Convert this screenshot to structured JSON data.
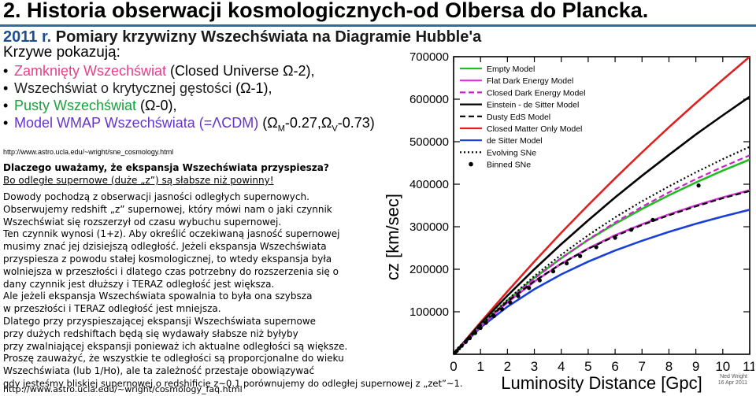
{
  "title": "2. Historia obserwacji kosmologicznych-od Olbersa do Plancka.",
  "subtitle_year": "2011 r.",
  "subtitle_rest": " Pomiary krzywizny Wszechświata na Diagramie Hubble'a",
  "intro": "Krzywe pokazują:",
  "bullets": [
    {
      "text": "Zamknięty Wszechświat",
      "suffix": " (Closed Universe Ω-2),",
      "color": "#e83e8c"
    },
    {
      "text": "Wszechświat o krytycznej gęstości",
      "suffix": " (Ω-1),",
      "color": "#222222"
    },
    {
      "text": "Pusty Wszechświat",
      "suffix": " (Ω-0),",
      "color": "#1aa23a"
    },
    {
      "text": "Model WMAP Wszechświata (=ΛCDM)",
      "suffix_html": true,
      "color": "#6633cc"
    }
  ],
  "wmap_params": {
    "open": " (Ω",
    "m_sub": "M",
    "m_val": "-0.27,Ω",
    "v_sub": "V",
    "v_val": "-0.73)"
  },
  "url1": "http://www.astro.ucla.edu/~wright/sne_cosmology.html",
  "question": "Dlaczego uważamy, że ekspansja Wszechświata przyspiesza?",
  "answer": "Bo odległe supernowe (duże „z”) są słabsze niż powinny!",
  "paragraph_lines": [
    "Dowody pochodzą z obserwacji jasności odległych supernowych.",
    "Obserwujemy redshift „z” supernowej, który mówi nam o jaki czynnik",
    "Wszechświat się rozszerzył od czasu wybuchu supernowej.",
    "Ten czynnik wynosi (1+z). Aby określić oczekiwaną jasność supernowej",
    "musimy znać jej dzisiejszą odległość. Jeżeli ekspansja Wszechświata",
    "przyspiesza z powodu stałej kosmologicznej, to wtedy ekspansja była",
    "wolniejsza w przeszłości i dlatego czas potrzebny do rozszerzenia się o",
    "dany czynnik jest dłuższy i TERAZ odległość jest większa.",
    "Ale jeżeli ekspansja Wszechświata spowalnia to była ona szybsza",
    "w przeszłości i TERAZ odległość jest mniejsza.",
    "Dlatego przy przyspieszającej ekspansji Wszechświata supernowe",
    "przy dużych redshiftach będą się wydawały słabsze niż byłyby",
    "przy zwalniającej ekspansji ponieważ ich aktualne odległości są większe.",
    "Proszę zauważyć, że wszystkie te odległości są proporcjonalne do wieku",
    "Wszechświata (lub 1/Ho), ale ta zależność przestaje obowiązywać",
    "gdy jesteśmy bliskiej supernowej o redshificie z~0.1 porównujemy do odległej supernowej z „zet”~1.",
    "http://www.astro.ucla.edu/~wright/cosmology_faq.html"
  ],
  "chart_data": {
    "type": "line",
    "xlabel": "Luminosity Distance [Gpc]",
    "ylabel": "cz [km/sec]",
    "xlim": [
      0,
      11
    ],
    "ylim": [
      0,
      700000
    ],
    "x_ticks": [
      "0",
      "1",
      "2",
      "3",
      "4",
      "5",
      "6",
      "7",
      "8",
      "9",
      "10",
      "11"
    ],
    "y_ticks": [
      "100000",
      "200000",
      "300000",
      "400000",
      "500000",
      "600000",
      "700000"
    ],
    "credit": [
      "Ned Wright",
      "16 Apr 2011"
    ],
    "series": [
      {
        "name": "Empty Model",
        "color": "#22bb22",
        "dash": "solid",
        "x": [
          0,
          1,
          2,
          3,
          4,
          5,
          6,
          7,
          8,
          9,
          10,
          11
        ],
        "y": [
          0,
          67000,
          127000,
          180000,
          226000,
          269000,
          307000,
          342000,
          374000,
          404000,
          432000,
          458000
        ]
      },
      {
        "name": "Flat Dark Energy Model",
        "color": "#dd33dd",
        "dash": "solid",
        "x": [
          0,
          1,
          2,
          3,
          4,
          5,
          6,
          7,
          8,
          9,
          10,
          11
        ],
        "y": [
          0,
          66000,
          122000,
          171000,
          213000,
          249000,
          280000,
          306000,
          329000,
          350000,
          369000,
          386000
        ]
      },
      {
        "name": "Closed Dark Energy Model",
        "color": "#cc22cc",
        "dash": "dashed",
        "x": [
          0,
          1,
          2,
          3,
          4,
          5,
          6,
          7,
          8,
          9,
          10,
          11
        ],
        "y": [
          0,
          66000,
          125000,
          178000,
          226000,
          270000,
          310000,
          347000,
          381000,
          412000,
          441000,
          468000
        ]
      },
      {
        "name": "Einstein - de Sitter Model",
        "color": "#000000",
        "dash": "solid",
        "x": [
          0,
          1,
          2,
          3,
          4,
          5,
          6,
          7,
          8,
          9,
          10,
          11
        ],
        "y": [
          0,
          72000,
          138000,
          200000,
          259000,
          315000,
          369000,
          420000,
          469000,
          517000,
          562000,
          606000
        ]
      },
      {
        "name": "Dusty EdS Model",
        "color": "#000000",
        "dash": "dashed",
        "x": [
          0,
          1,
          2,
          3,
          4,
          5,
          6,
          7,
          8,
          9,
          10,
          11
        ],
        "y": [
          0,
          67000,
          124000,
          172000,
          213000,
          248000,
          278000,
          304000,
          327000,
          348000,
          367000,
          384000
        ]
      },
      {
        "name": "Closed Matter Only Model",
        "color": "#e02020",
        "dash": "solid",
        "x": [
          0,
          1,
          2,
          3,
          4,
          5,
          6,
          7,
          8,
          9,
          10,
          11
        ],
        "y": [
          0,
          75000,
          148000,
          218000,
          286000,
          351000,
          414000,
          475000,
          534000,
          591000,
          646000,
          700000
        ]
      },
      {
        "name": "de Sitter Model",
        "color": "#1a3fd8",
        "dash": "solid",
        "x": [
          0,
          1,
          2,
          3,
          4,
          5,
          6,
          7,
          8,
          9,
          10,
          11
        ],
        "y": [
          0,
          63000,
          112000,
          153000,
          188000,
          218000,
          244000,
          267000,
          288000,
          307000,
          324000,
          340000
        ]
      },
      {
        "name": "Evolving SNe",
        "color": "#000000",
        "dash": "dotted",
        "x": [
          0,
          1,
          2,
          3,
          4,
          5,
          6,
          7,
          8,
          9,
          10,
          11
        ],
        "y": [
          0,
          68000,
          128000,
          184000,
          234000,
          280000,
          322000,
          360000,
          395000,
          428000,
          459000,
          488000
        ]
      }
    ],
    "binned_sne": {
      "name": "Binned SNe",
      "x": [
        0.05,
        0.12,
        0.2,
        0.3,
        0.45,
        0.6,
        0.8,
        1.0,
        1.2,
        1.5,
        1.8,
        2.1,
        2.4,
        2.8,
        3.2,
        3.7,
        4.2,
        4.7,
        5.3,
        6.0,
        6.6,
        7.4,
        9.1
      ],
      "y": [
        3500,
        8000,
        14000,
        20000,
        29000,
        38000,
        50000,
        62000,
        74000,
        90000,
        106000,
        122000,
        137000,
        156000,
        174000,
        195000,
        214000,
        231000,
        252000,
        274000,
        293000,
        316000,
        397000
      ]
    }
  }
}
